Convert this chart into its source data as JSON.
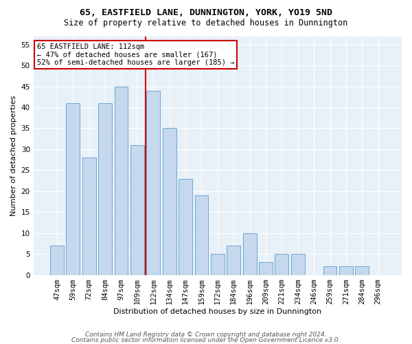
{
  "title1": "65, EASTFIELD LANE, DUNNINGTON, YORK, YO19 5ND",
  "title2": "Size of property relative to detached houses in Dunnington",
  "xlabel": "Distribution of detached houses by size in Dunnington",
  "ylabel": "Number of detached properties",
  "categories": [
    "47sqm",
    "59sqm",
    "72sqm",
    "84sqm",
    "97sqm",
    "109sqm",
    "122sqm",
    "134sqm",
    "147sqm",
    "159sqm",
    "172sqm",
    "184sqm",
    "196sqm",
    "209sqm",
    "221sqm",
    "234sqm",
    "246sqm",
    "259sqm",
    "271sqm",
    "284sqm",
    "296sqm"
  ],
  "values": [
    7,
    41,
    28,
    41,
    45,
    31,
    44,
    35,
    23,
    19,
    5,
    7,
    10,
    3,
    5,
    5,
    0,
    2,
    2,
    2,
    0
  ],
  "bar_color": "#c5d8ed",
  "bar_edge_color": "#5a9ec9",
  "vline_color": "#cc0000",
  "vline_x": 5.5,
  "ylim": [
    0,
    57
  ],
  "yticks": [
    0,
    5,
    10,
    15,
    20,
    25,
    30,
    35,
    40,
    45,
    50,
    55
  ],
  "annotation_text": "65 EASTFIELD LANE: 112sqm\n← 47% of detached houses are smaller (167)\n52% of semi-detached houses are larger (185) →",
  "annotation_box_color": "#ffffff",
  "annotation_box_edge": "#cc0000",
  "footer1": "Contains HM Land Registry data © Crown copyright and database right 2024.",
  "footer2": "Contains public sector information licensed under the Open Government Licence v3.0.",
  "bg_color": "#e8f0f8",
  "grid_color": "#ffffff",
  "fig_bg": "#ffffff",
  "title1_fontsize": 9.5,
  "title2_fontsize": 8.5,
  "axis_label_fontsize": 8,
  "tick_fontsize": 7.5,
  "annotation_fontsize": 7.5,
  "footer_fontsize": 6.5
}
